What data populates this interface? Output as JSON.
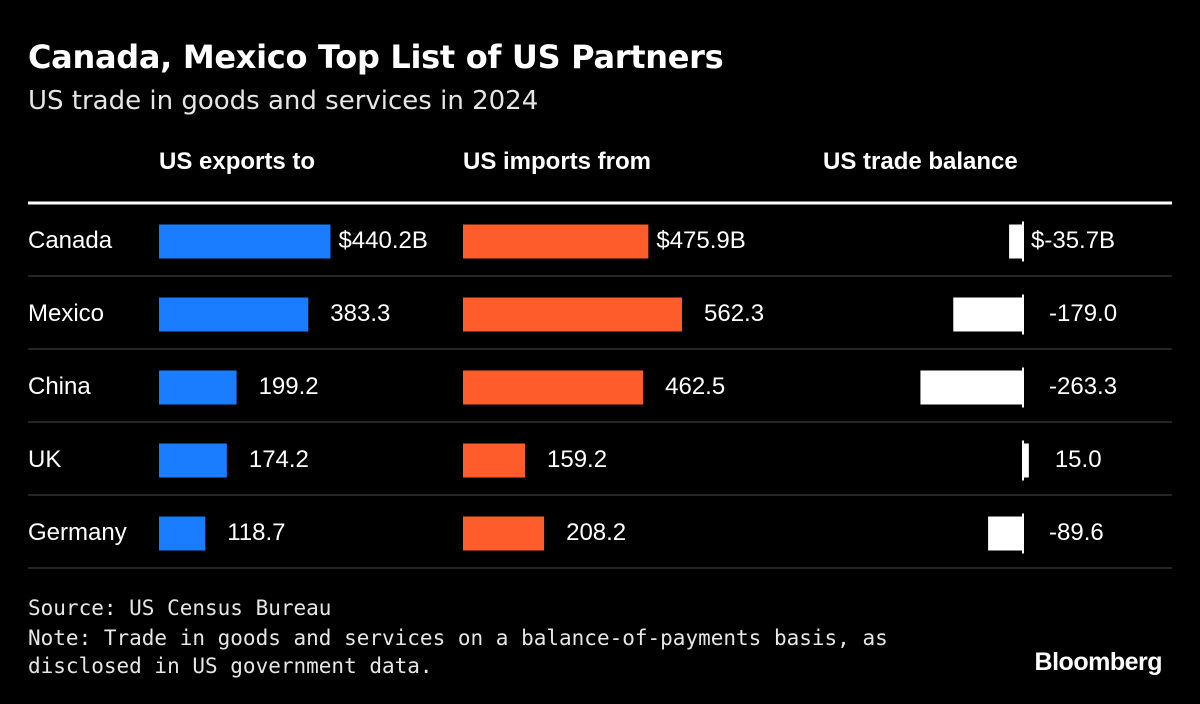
{
  "title": "Canada, Mexico Top List of US Partners",
  "subtitle": "US trade in goods and services in 2024",
  "source": "Source: US Census Bureau",
  "note": "Note: Trade in goods and services on a balance-of-payments basis, as disclosed in US government data.",
  "logo": "Bloomberg",
  "colors": {
    "background": "#000000",
    "exports": "#1a7cff",
    "imports": "#ff5c2b",
    "balance": "#ffffff",
    "divider": "#4a4a4a"
  },
  "chart_data": {
    "type": "bar",
    "categories": [
      "Canada",
      "Mexico",
      "China",
      "UK",
      "Germany"
    ],
    "series": [
      {
        "name": "US exports to",
        "values": [
          440.2,
          383.3,
          199.2,
          174.2,
          118.7
        ],
        "labels": [
          "$440.2B",
          "383.3",
          "199.2",
          "174.2",
          "118.7"
        ]
      },
      {
        "name": "US imports from",
        "values": [
          475.9,
          562.3,
          462.5,
          159.2,
          208.2
        ],
        "labels": [
          "$475.9B",
          "562.3",
          "462.5",
          "159.2",
          "208.2"
        ]
      },
      {
        "name": "US trade balance",
        "values": [
          -35.7,
          -179.0,
          -263.3,
          15.0,
          -89.6
        ],
        "labels": [
          "$-35.7B",
          "-179.0",
          "-263.3",
          "15.0",
          "-89.6"
        ]
      }
    ]
  }
}
